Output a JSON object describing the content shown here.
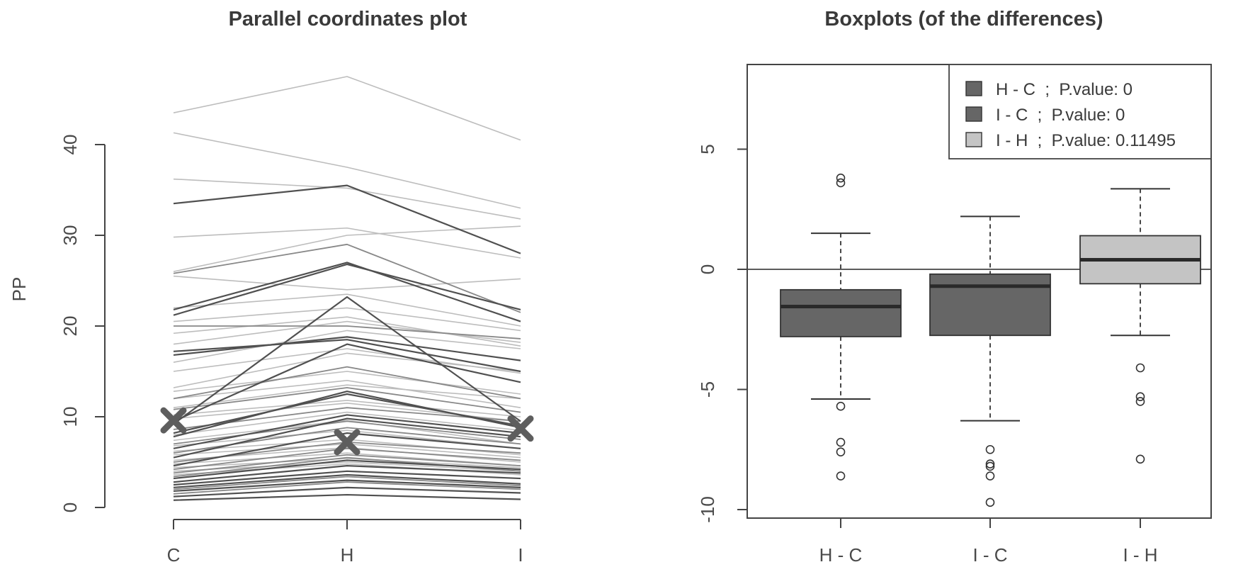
{
  "chart_data": [
    {
      "type": "line",
      "subtype": "parallel-coordinates",
      "title": "Parallel coordinates plot",
      "ylabel": "PP",
      "categories": [
        "C",
        "H",
        "I"
      ],
      "yticks": [
        0,
        10,
        20,
        30,
        40
      ],
      "ylim": [
        0,
        40
      ],
      "highlight_marker": "x",
      "highlight_points": [
        {
          "category": "C",
          "value": 9.6
        },
        {
          "category": "H",
          "value": 7.2
        },
        {
          "category": "I",
          "value": 8.7
        }
      ],
      "colors": {
        "dark": "#505050",
        "mid": "#888888",
        "light": "#bdbdbd",
        "marker": "#5e5e5e"
      },
      "series_dark": [
        [
          33.5,
          35.5,
          28.0
        ],
        [
          21.8,
          27.0,
          20.5
        ],
        [
          21.2,
          26.8,
          21.8
        ],
        [
          17.2,
          18.5,
          15.0
        ],
        [
          16.8,
          18.8,
          16.2
        ],
        [
          9.5,
          18.0,
          13.8
        ],
        [
          9.2,
          23.2,
          9.5
        ],
        [
          8.2,
          12.5,
          9.0
        ],
        [
          7.8,
          12.8,
          8.8
        ],
        [
          6.5,
          10.2,
          8.2
        ],
        [
          5.5,
          9.8,
          7.8
        ],
        [
          4.6,
          8.2,
          6.5
        ],
        [
          3.2,
          5.2,
          4.2
        ],
        [
          2.8,
          4.6,
          3.8
        ],
        [
          2.5,
          4.0,
          3.2
        ],
        [
          2.2,
          3.6,
          2.6
        ],
        [
          1.8,
          3.0,
          2.2
        ],
        [
          1.2,
          2.2,
          1.6
        ],
        [
          0.8,
          1.4,
          0.9
        ]
      ],
      "series_mid": [
        [
          25.8,
          29.0,
          21.5
        ],
        [
          20.0,
          20.0,
          18.6
        ],
        [
          12.0,
          15.5,
          12.0
        ],
        [
          10.8,
          13.2,
          10.5
        ],
        [
          8.6,
          11.0,
          9.5
        ],
        [
          7.0,
          9.5,
          7.5
        ],
        [
          6.0,
          8.8,
          7.0
        ],
        [
          5.0,
          7.2,
          6.0
        ],
        [
          4.2,
          6.5,
          5.2
        ],
        [
          3.8,
          5.8,
          4.6
        ],
        [
          3.4,
          5.5,
          4.0
        ],
        [
          2.0,
          3.4,
          2.4
        ],
        [
          1.5,
          2.8,
          2.0
        ]
      ],
      "series_light": [
        [
          43.5,
          47.5,
          40.5
        ],
        [
          41.3,
          37.5,
          33.0
        ],
        [
          36.2,
          35.2,
          31.8
        ],
        [
          29.8,
          30.8,
          27.5
        ],
        [
          26.0,
          30.0,
          31.0
        ],
        [
          25.5,
          24.0,
          25.2
        ],
        [
          22.0,
          23.5,
          20.0
        ],
        [
          20.5,
          22.0,
          19.5
        ],
        [
          19.2,
          21.0,
          17.8
        ],
        [
          18.0,
          20.5,
          18.2
        ],
        [
          16.0,
          19.5,
          17.5
        ],
        [
          15.0,
          17.5,
          14.8
        ],
        [
          13.2,
          17.0,
          15.0
        ],
        [
          12.8,
          15.0,
          12.5
        ],
        [
          12.0,
          14.0,
          11.0
        ],
        [
          11.0,
          13.5,
          12.0
        ],
        [
          10.2,
          11.8,
          10.0
        ],
        [
          9.8,
          11.5,
          9.5
        ],
        [
          8.0,
          10.5,
          8.5
        ],
        [
          7.4,
          9.6,
          7.0
        ],
        [
          6.8,
          8.5,
          6.5
        ],
        [
          6.2,
          7.5,
          5.8
        ],
        [
          5.8,
          7.0,
          5.5
        ],
        [
          5.2,
          6.6,
          5.0
        ],
        [
          4.8,
          6.0,
          4.6
        ],
        [
          4.4,
          5.4,
          4.4
        ],
        [
          4.0,
          5.0,
          4.0
        ],
        [
          3.6,
          4.8,
          3.6
        ]
      ]
    },
    {
      "type": "boxplot",
      "title": "Boxplots (of the differences)",
      "categories": [
        "H - C",
        "I - C",
        "I - H"
      ],
      "yticks": [
        -10,
        -5,
        0,
        5
      ],
      "ylim": [
        -10.4,
        8.5
      ],
      "reference_line": 0,
      "boxes": [
        {
          "name": "H - C",
          "whisker_low": -5.4,
          "q1": -2.8,
          "median": -1.55,
          "q3": -0.85,
          "whisker_high": 1.5,
          "outliers": [
            3.6,
            3.8,
            -5.7,
            -7.2,
            -7.6,
            -8.6
          ],
          "color": "#666666"
        },
        {
          "name": "I - C",
          "whisker_low": -6.3,
          "q1": -2.75,
          "median": -0.7,
          "q3": -0.2,
          "whisker_high": 2.2,
          "outliers": [
            -7.5,
            -8.1,
            -8.2,
            -8.6,
            -9.7
          ],
          "color": "#666666"
        },
        {
          "name": "I - H",
          "whisker_low": -2.75,
          "q1": -0.6,
          "median": 0.4,
          "q3": 1.4,
          "whisker_high": 3.35,
          "outliers": [
            -4.1,
            -5.3,
            -5.5,
            -7.9
          ],
          "color": "#c4c4c4"
        }
      ],
      "legend": {
        "position": "top-right",
        "items": [
          {
            "label": "H - C  ;  P.value: 0",
            "color": "#666666"
          },
          {
            "label": "I - C  ;  P.value: 0",
            "color": "#666666"
          },
          {
            "label": "I - H  ;  P.value: 0.11495",
            "color": "#c4c4c4"
          }
        ]
      }
    }
  ]
}
